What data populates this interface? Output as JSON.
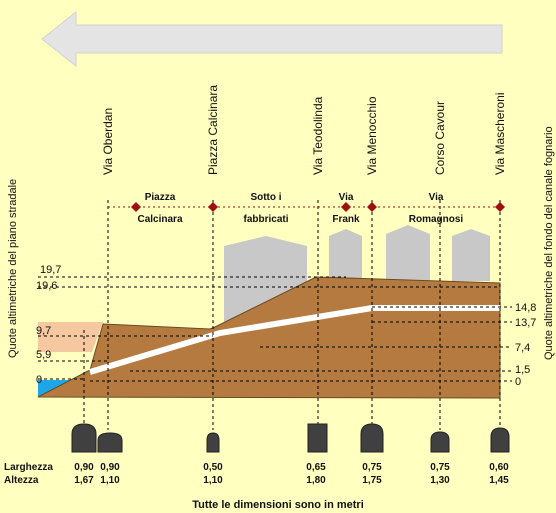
{
  "streets": [
    "Via Oberdan",
    "Piazza Calcinara",
    "Via Teodolinda",
    "Via Menocchio",
    "Corso Cavour",
    "Via Mascheroni"
  ],
  "segments": [
    {
      "line1": "Piazza",
      "line2": "Calcinara"
    },
    {
      "line1": "Sotto i",
      "line2": "fabbricati"
    },
    {
      "line1": "Via",
      "line2": "Frank"
    },
    {
      "line1": "Via",
      "line2": "Romagnosi"
    }
  ],
  "left_axis_label": "Quote altimetriche del piano stradale",
  "right_axis_label": "Quote altimetriche del fondo del canale fognario",
  "left_levels": [
    "19,7",
    "19,6",
    "9,7",
    "5,9",
    "0"
  ],
  "right_levels": [
    "14,8",
    "13,7",
    "7,4",
    "1,5",
    "0"
  ],
  "dimensions": {
    "width_label": "Larghezza",
    "height_label": "Altezza",
    "columns": [
      {
        "width": "0,90",
        "height": "1,67"
      },
      {
        "width": "0,90",
        "height": "1,10"
      },
      {
        "width": "0,50",
        "height": "1,10"
      },
      {
        "width": "0,65",
        "height": "1,80"
      },
      {
        "width": "0,75",
        "height": "1,75"
      },
      {
        "width": "0,75",
        "height": "1,30"
      },
      {
        "width": "0,60",
        "height": "1,45"
      }
    ]
  },
  "footer_note": "Tutte le dimensioni sono in metri",
  "colors": {
    "background": "#ffffc0",
    "ground": "#b57a3f",
    "sewer_line": "#ffffff",
    "water": "#1ea7e8",
    "buildings": "#c8c8c8",
    "markers": "#a01010",
    "arrow": "#e0e0e0"
  }
}
